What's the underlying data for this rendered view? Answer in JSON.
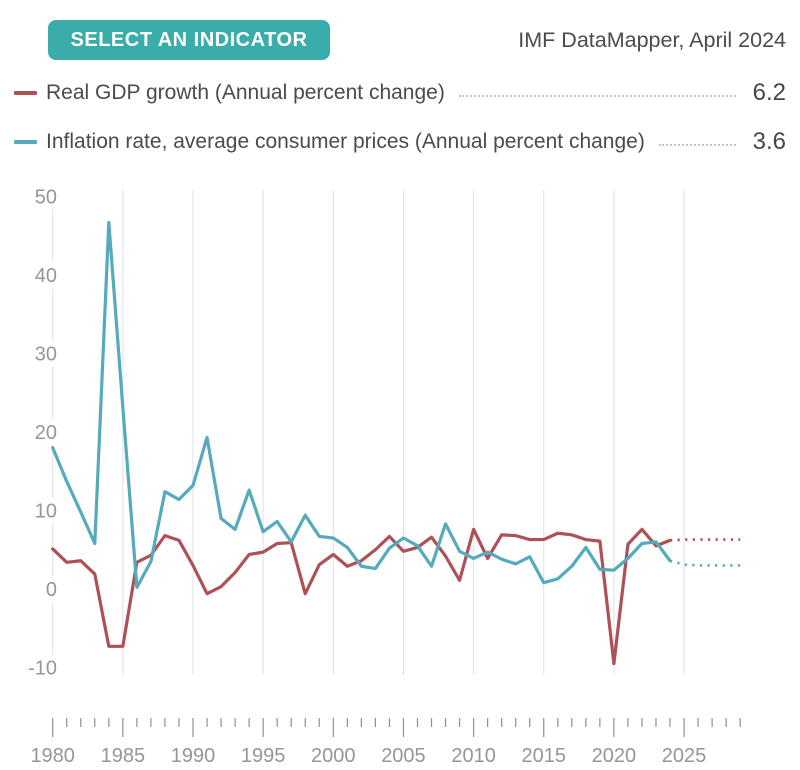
{
  "header": {
    "button_label": "SELECT AN INDICATOR",
    "source_label": "IMF DataMapper, April 2024"
  },
  "legend": [
    {
      "label": "Real GDP growth (Annual percent change)",
      "value": "6.2",
      "color": "#AE5156"
    },
    {
      "label": "Inflation rate, average consumer prices (Annual percent change)",
      "value": "3.6",
      "color": "#55AABC"
    }
  ],
  "chart_data": {
    "type": "line",
    "title": "",
    "xlabel": "",
    "ylabel": "",
    "x_axis": {
      "tick_start": 1980,
      "tick_end": 2029,
      "label_years": [
        1980,
        1985,
        1990,
        1995,
        2000,
        2005,
        2010,
        2015,
        2020,
        2025
      ]
    },
    "y_axis": {
      "ticks": [
        50,
        40,
        30,
        20,
        10,
        0,
        -10
      ],
      "min": -11,
      "max": 50.5
    },
    "gridline_years": [
      1980,
      1985,
      1990,
      1995,
      2000,
      2005,
      2010,
      2015,
      2020,
      2025
    ],
    "grid": "vertical-only",
    "legend_position": "top",
    "series": [
      {
        "id": "real-gdp-growth",
        "name": "Real GDP growth (Annual percent change)",
        "color": "#AE5156",
        "start_year": 1980,
        "values": [
          5.1,
          3.4,
          3.6,
          1.9,
          -7.3,
          -7.3,
          3.4,
          4.3,
          6.8,
          6.2,
          3.0,
          -0.6,
          0.3,
          2.1,
          4.4,
          4.7,
          5.8,
          5.9,
          -0.6,
          3.1,
          4.4,
          2.9,
          3.6,
          5.0,
          6.7,
          4.8,
          5.3,
          6.6,
          4.2,
          1.1,
          7.6,
          3.9,
          6.9,
          6.8,
          6.3,
          6.3,
          7.1,
          6.9,
          6.3,
          6.1,
          -9.5,
          5.7,
          7.6,
          5.5,
          6.2
        ],
        "latest_value": 6.2,
        "projection": {
          "start_year": 2024,
          "values": [
            6.2,
            6.3,
            6.3,
            6.3,
            6.3,
            6.3
          ]
        }
      },
      {
        "id": "inflation-rate",
        "name": "Inflation rate, average consumer prices (Annual percent change)",
        "color": "#55AABC",
        "start_year": 1980,
        "values": [
          18.0,
          13.7,
          9.8,
          5.8,
          46.7,
          23.1,
          0.2,
          3.5,
          12.4,
          11.4,
          13.2,
          19.3,
          9.0,
          7.6,
          12.6,
          7.3,
          8.6,
          6.0,
          9.4,
          6.7,
          6.5,
          5.3,
          2.9,
          2.6,
          5.2,
          6.5,
          5.5,
          2.9,
          8.3,
          4.8,
          3.9,
          4.7,
          3.8,
          3.2,
          4.1,
          0.8,
          1.3,
          2.9,
          5.3,
          2.5,
          2.4,
          3.9,
          5.8,
          6.0,
          3.6
        ],
        "latest_value": 3.6,
        "projection": {
          "start_year": 2024,
          "values": [
            3.6,
            3.1,
            3.0,
            3.0,
            3.0,
            3.0
          ]
        }
      }
    ],
    "style": {
      "gridline_color": "#E1E1E5",
      "tick_color": "#8F8F99",
      "axis_label_color": "#95959D",
      "background": "#FFFFFF"
    }
  }
}
